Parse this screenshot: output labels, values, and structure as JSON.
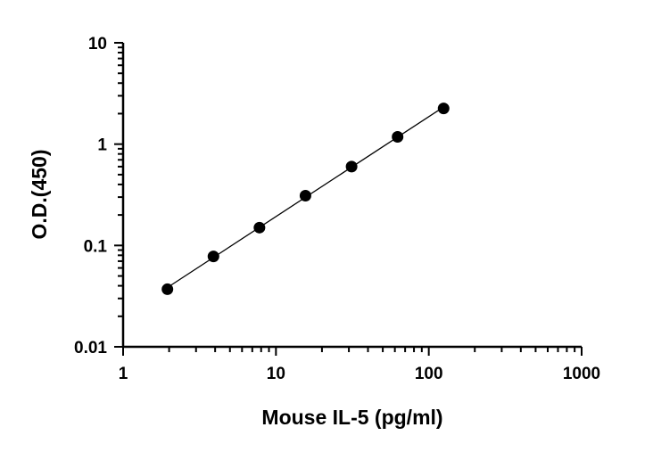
{
  "chart_data": {
    "type": "scatter",
    "xlabel": "Mouse IL-5 (pg/ml)",
    "ylabel": "O.D.(450)",
    "x_scale": "log",
    "y_scale": "log",
    "xlim": [
      1,
      1000
    ],
    "ylim": [
      0.01,
      10
    ],
    "x_ticks": [
      "1",
      "10",
      "100",
      "1000"
    ],
    "y_ticks": [
      "0.01",
      "0.1",
      "1",
      "10"
    ],
    "grid": false,
    "series": [
      {
        "x": [
          1.95,
          3.9,
          7.8,
          15.6,
          31.25,
          62.5,
          125
        ],
        "y": [
          0.037,
          0.078,
          0.15,
          0.31,
          0.6,
          1.18,
          2.25
        ],
        "fit_line": true
      }
    ],
    "colors": {
      "points": "#000000",
      "line": "#000000",
      "axis": "#000000"
    }
  }
}
